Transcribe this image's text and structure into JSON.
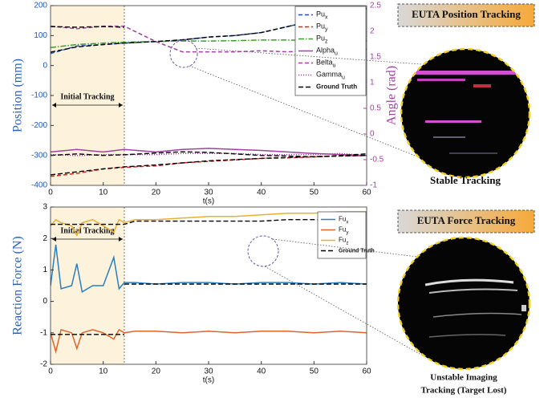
{
  "chart_data": [
    {
      "type": "line",
      "x_label": "t(s)",
      "y_label": "Position  (mm)",
      "y2_label": "Angle (rad)",
      "xlim": [
        0,
        60
      ],
      "xticks": [
        0,
        10,
        20,
        30,
        40,
        50,
        60
      ],
      "ylim": [
        -400,
        200
      ],
      "yticks": [
        -400,
        -300,
        -200,
        -100,
        0,
        100,
        200
      ],
      "y2lim": [
        -1,
        2.5
      ],
      "y2ticks": [
        -1,
        -0.5,
        0,
        0.5,
        1,
        1.5,
        2,
        2.5
      ],
      "shade": [
        0,
        14
      ],
      "shade_label": "Initial Tracking",
      "x": [
        0,
        5,
        10,
        14,
        20,
        25,
        30,
        35,
        40,
        45,
        50,
        55,
        60
      ],
      "series": [
        {
          "name": "Pu",
          "sub": "x",
          "color": "#1f4fbf",
          "dash": "dashed",
          "values": [
            40,
            65,
            70,
            75,
            80,
            85,
            95,
            100,
            110,
            130,
            150,
            170,
            190
          ]
        },
        {
          "name": "Pu",
          "sub": "y",
          "color": "#e0201b",
          "dash": "dashed",
          "values": [
            -370,
            -360,
            -345,
            -340,
            -335,
            -325,
            -320,
            -315,
            -310,
            -308,
            -305,
            -302,
            -300
          ]
        },
        {
          "name": "Pu",
          "sub": "z",
          "color": "#3aa02a",
          "dash": "dashdot",
          "values": [
            60,
            70,
            75,
            78,
            80,
            82,
            82,
            83,
            85,
            85,
            83,
            82,
            82
          ]
        },
        {
          "name": "Alpha",
          "sub": "u",
          "color": "#a040a0",
          "dash": "solid",
          "axis": "y2",
          "values": [
            -0.35,
            -0.3,
            -0.35,
            -0.3,
            -0.35,
            -0.3,
            -0.28,
            -0.3,
            -0.32,
            -0.35,
            -0.38,
            -0.4,
            -0.42
          ]
        },
        {
          "name": "Belta",
          "sub": "u",
          "color": "#a040a0",
          "dash": "dashed",
          "axis": "y2",
          "values": [
            2.1,
            2.05,
            2.1,
            2.1,
            1.8,
            1.6,
            1.6,
            1.6,
            1.62,
            1.6,
            1.62,
            1.6,
            1.65
          ]
        },
        {
          "name": "Gamma",
          "sub": "u",
          "color": "#a040a0",
          "dash": "dotted",
          "axis": "y2",
          "values": [
            -0.4,
            -0.42,
            -0.4,
            -0.4,
            -0.4,
            -0.38,
            -0.38,
            -0.38,
            -0.4,
            -0.4,
            -0.4,
            -0.38,
            -0.42
          ]
        }
      ],
      "ground_truth": {
        "name": "Ground Truth",
        "color": "#000000",
        "lines": [
          [
            45,
            62,
            70,
            75,
            80,
            86,
            95,
            100,
            110,
            130,
            150,
            170,
            190
          ],
          [
            -365,
            -355,
            -345,
            -338,
            -332,
            -325,
            -318,
            -314,
            -310,
            -307,
            -304,
            -302,
            -300
          ],
          [
            -300,
            -295,
            -300,
            -298,
            -292,
            -288,
            -290,
            -295,
            -300,
            -302,
            -305,
            -300,
            -295
          ],
          [
            130,
            128,
            130,
            128,
            null,
            null,
            null,
            null,
            null,
            null,
            null,
            null,
            null
          ]
        ]
      }
    },
    {
      "type": "line",
      "x_label": "t(s)",
      "y_label": "Reaction Force (N)",
      "xlim": [
        0,
        60
      ],
      "xticks": [
        0,
        10,
        20,
        30,
        40,
        50,
        60
      ],
      "ylim": [
        -2,
        3
      ],
      "yticks": [
        -2,
        -1,
        0,
        1,
        2,
        3
      ],
      "shade": [
        0,
        14
      ],
      "shade_label": "Initial Tracking",
      "x": [
        0,
        1,
        2,
        4,
        5,
        6,
        8,
        10,
        12,
        13,
        14,
        16,
        20,
        25,
        30,
        35,
        40,
        45,
        50,
        55,
        60
      ],
      "series": [
        {
          "name": "Fu",
          "sub": "x",
          "color": "#2a7fc0",
          "dash": "solid",
          "values": [
            0.5,
            1.8,
            0.4,
            0.5,
            1.2,
            0.3,
            0.5,
            0.5,
            1.4,
            0.4,
            0.6,
            0.6,
            0.55,
            0.6,
            0.6,
            0.55,
            0.6,
            0.6,
            0.55,
            0.6,
            0.55
          ]
        },
        {
          "name": "Fu",
          "sub": "y",
          "color": "#e0632a",
          "dash": "solid",
          "values": [
            -1.0,
            -1.6,
            -0.9,
            -1.0,
            -1.5,
            -1.0,
            -0.9,
            -1.0,
            -1.2,
            -0.9,
            -1.0,
            -0.95,
            -0.95,
            -1.0,
            -0.95,
            -1.0,
            -0.95,
            -0.95,
            -1.0,
            -0.95,
            -1.0
          ]
        },
        {
          "name": "Fu",
          "sub": "z",
          "color": "#e8b030",
          "dash": "solid",
          "values": [
            2.4,
            2.6,
            2.5,
            2.4,
            2.1,
            2.5,
            2.6,
            2.4,
            2.2,
            2.6,
            2.5,
            2.6,
            2.6,
            2.65,
            2.7,
            2.7,
            2.75,
            2.8,
            2.8,
            2.85,
            2.85
          ]
        }
      ],
      "ground_truth": {
        "name": "Ground Truth",
        "color": "#000000",
        "lines": [
          [
            2.45,
            2.45,
            2.45,
            2.45,
            2.45,
            2.45,
            2.45,
            2.45,
            2.45,
            2.45,
            2.45,
            2.55,
            2.55,
            2.55,
            2.55,
            2.55,
            2.55,
            2.6,
            2.6,
            2.6,
            2.6
          ],
          [
            null,
            null,
            null,
            null,
            null,
            null,
            null,
            null,
            null,
            null,
            0.55,
            0.55,
            0.55,
            0.55,
            0.55,
            0.55,
            0.55,
            0.55,
            0.55,
            0.55,
            0.55
          ],
          [
            -1.05,
            -1.05,
            -1.05,
            -1.05,
            -1.05,
            -1.05,
            -1.05,
            -1.05,
            -1.05,
            -1.05,
            -1.05,
            null,
            null,
            null,
            null,
            null,
            null,
            null,
            null,
            null,
            null
          ]
        ]
      }
    }
  ],
  "side_panels": [
    {
      "title": "EUTA Position Tracking",
      "caption": [
        "Stable Tracking"
      ]
    },
    {
      "title": "EUTA Force Tracking",
      "caption": [
        "Unstable Imaging",
        "Tracking (Target Lost)"
      ]
    }
  ]
}
